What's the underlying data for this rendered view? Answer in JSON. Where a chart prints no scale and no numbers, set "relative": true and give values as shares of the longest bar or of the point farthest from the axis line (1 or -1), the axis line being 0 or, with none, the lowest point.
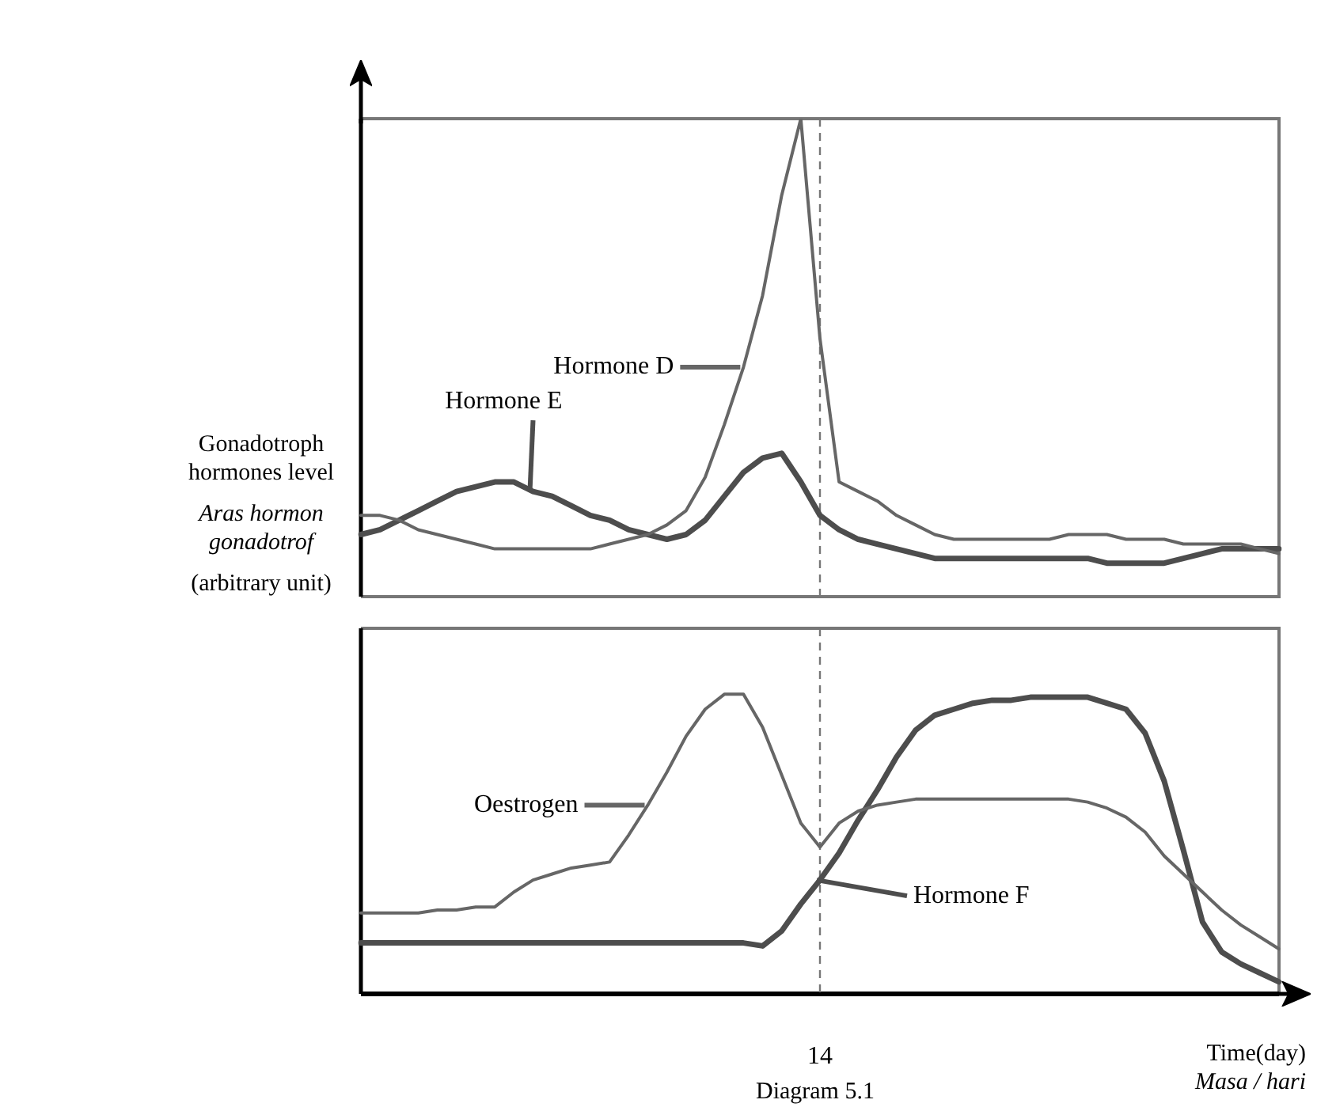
{
  "chart_data": [
    {
      "type": "line",
      "relative": true,
      "ylabel": "Gonadotroph hormones level\nAras hormon gonadotrof\n(arbitrary unit)",
      "tick_labels": false,
      "marker": "none",
      "line_style": "solid",
      "categories": [
        null,
        null,
        null,
        null,
        null,
        null,
        null,
        null,
        null,
        null,
        null,
        null,
        null,
        null,
        null,
        null,
        null,
        null,
        null,
        null,
        null,
        null,
        null,
        null,
        null,
        null,
        null,
        null,
        null,
        null,
        null,
        null,
        null,
        null,
        null,
        null,
        null,
        null,
        null,
        null,
        null,
        null,
        null,
        null,
        null,
        null,
        null,
        null,
        null
      ],
      "ref_lines": [
        {
          "axis": "x",
          "color": "#777777",
          "line_style": "dashed"
        }
      ],
      "series": [
        {
          "name": "Hormone D",
          "color": "#666666",
          "values": [
            0.17,
            0.17,
            0.16,
            0.14,
            0.13,
            0.12,
            0.11,
            0.1,
            0.1,
            0.1,
            0.1,
            0.1,
            0.1,
            0.11,
            0.12,
            0.13,
            0.15,
            0.18,
            0.25,
            0.36,
            0.48,
            0.63,
            0.84,
            1,
            0.54,
            0.24,
            0.22,
            0.2,
            0.17,
            0.15,
            0.13,
            0.12,
            0.12,
            0.12,
            0.12,
            0.12,
            0.12,
            0.13,
            0.13,
            0.13,
            0.12,
            0.12,
            0.12,
            0.11,
            0.11,
            0.11,
            0.11,
            0.1,
            0.09
          ]
        },
        {
          "name": "Hormone E",
          "color": "#4d4d4d",
          "values": [
            0.13,
            0.14,
            0.16,
            0.18,
            0.2,
            0.22,
            0.23,
            0.24,
            0.24,
            0.22,
            0.21,
            0.19,
            0.17,
            0.16,
            0.14,
            0.13,
            0.12,
            0.13,
            0.16,
            0.21,
            0.26,
            0.29,
            0.3,
            0.24,
            0.17,
            0.14,
            0.12,
            0.11,
            0.1,
            0.09,
            0.08,
            0.08,
            0.08,
            0.08,
            0.08,
            0.08,
            0.08,
            0.08,
            0.08,
            0.07,
            0.07,
            0.07,
            0.07,
            0.08,
            0.09,
            0.1,
            0.1,
            0.1,
            0.1
          ]
        }
      ]
    },
    {
      "type": "line",
      "relative": true,
      "xlabel": "Time(day)\nMasa / hari",
      "tick_labels": false,
      "marker": "none",
      "line_style": "solid",
      "categories": [
        null,
        null,
        null,
        null,
        null,
        null,
        null,
        null,
        null,
        null,
        null,
        null,
        null,
        null,
        null,
        null,
        null,
        null,
        null,
        null,
        null,
        null,
        null,
        null,
        null,
        null,
        null,
        null,
        null,
        null,
        null,
        null,
        null,
        null,
        null,
        null,
        null,
        null,
        null,
        null,
        null,
        null,
        null,
        null,
        null,
        null,
        null,
        null,
        null
      ],
      "ref_lines": [
        {
          "axis": "x",
          "label": "14",
          "color": "#777777",
          "line_style": "dashed"
        }
      ],
      "annotations": [
        "Diagram 5.1"
      ],
      "series": [
        {
          "name": "Oestrogen",
          "color": "#666666",
          "values": [
            0.27,
            0.27,
            0.27,
            0.27,
            0.28,
            0.28,
            0.29,
            0.29,
            0.34,
            0.38,
            0.4,
            0.42,
            0.43,
            0.44,
            0.53,
            0.63,
            0.74,
            0.86,
            0.95,
            1,
            1,
            0.89,
            0.73,
            0.57,
            0.49,
            0.57,
            0.61,
            0.63,
            0.64,
            0.65,
            0.65,
            0.65,
            0.65,
            0.65,
            0.65,
            0.65,
            0.65,
            0.65,
            0.64,
            0.62,
            0.59,
            0.54,
            0.46,
            0.4,
            0.34,
            0.28,
            0.23,
            0.19,
            0.15
          ]
        },
        {
          "name": "Hormone F",
          "color": "#4d4d4d",
          "values": [
            0.17,
            0.17,
            0.17,
            0.17,
            0.17,
            0.17,
            0.17,
            0.17,
            0.17,
            0.17,
            0.17,
            0.17,
            0.17,
            0.17,
            0.17,
            0.17,
            0.17,
            0.17,
            0.17,
            0.17,
            0.17,
            0.16,
            0.21,
            0.3,
            0.38,
            0.47,
            0.58,
            0.68,
            0.79,
            0.88,
            0.93,
            0.95,
            0.97,
            0.98,
            0.98,
            0.99,
            0.99,
            0.99,
            0.99,
            0.97,
            0.95,
            0.87,
            0.71,
            0.48,
            0.24,
            0.14,
            0.1,
            0.07,
            0.04
          ]
        }
      ]
    }
  ]
}
